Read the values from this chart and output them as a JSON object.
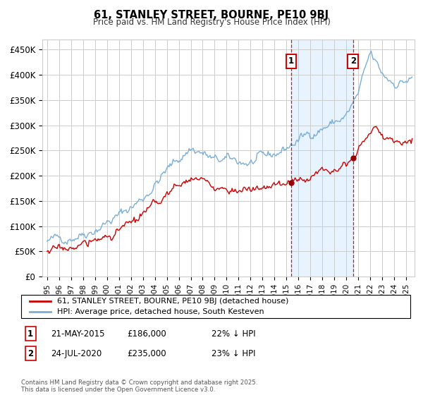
{
  "title": "61, STANLEY STREET, BOURNE, PE10 9BJ",
  "subtitle": "Price paid vs. HM Land Registry's House Price Index (HPI)",
  "ylabel_ticks": [
    "£0",
    "£50K",
    "£100K",
    "£150K",
    "£200K",
    "£250K",
    "£300K",
    "£350K",
    "£400K",
    "£450K"
  ],
  "ytick_values": [
    0,
    50000,
    100000,
    150000,
    200000,
    250000,
    300000,
    350000,
    400000,
    450000
  ],
  "ylim": [
    0,
    470000
  ],
  "xlim_start": 1994.6,
  "xlim_end": 2025.7,
  "marker1_date": 2015.385,
  "marker2_date": 2020.558,
  "marker1_price": 186000,
  "marker2_price": 235000,
  "marker1_label": "1",
  "marker2_label": "2",
  "marker1_info_date": "21-MAY-2015",
  "marker1_info_price": "£186,000",
  "marker1_info_hpi": "22% ↓ HPI",
  "marker2_info_date": "24-JUL-2020",
  "marker2_info_price": "£235,000",
  "marker2_info_hpi": "23% ↓ HPI",
  "legend_line1": "61, STANLEY STREET, BOURNE, PE10 9BJ (detached house)",
  "legend_line2": "HPI: Average price, detached house, South Kesteven",
  "footer": "Contains HM Land Registry data © Crown copyright and database right 2025.\nThis data is licensed under the Open Government Licence v3.0.",
  "line_color_sold": "#cc0000",
  "line_color_hpi": "#7aaed6",
  "bg_shade_color": "#ddeeff",
  "marker_box_color": "#cc0000",
  "grid_color": "#cccccc",
  "background_color": "#ffffff",
  "dot_color": "#990000"
}
